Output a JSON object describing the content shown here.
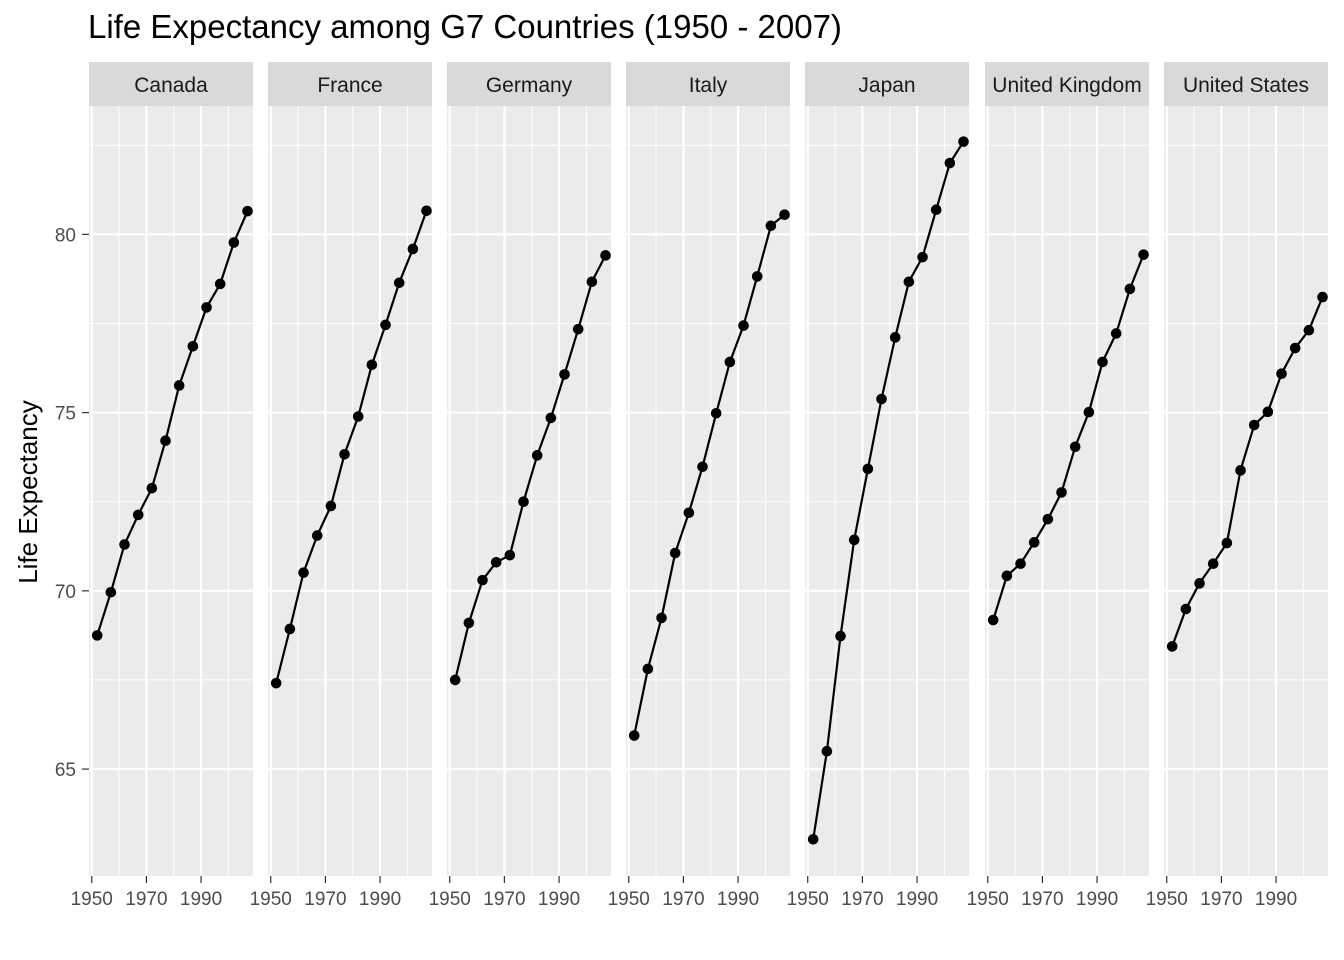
{
  "chart_data": {
    "type": "line",
    "title": "Life Expectancy among G7 Countries (1950 - 2007)",
    "xlabel": "",
    "ylabel": "Life Expectancy",
    "x": [
      1952,
      1957,
      1962,
      1967,
      1972,
      1977,
      1982,
      1987,
      1992,
      1997,
      2002,
      2007
    ],
    "xlim": [
      1949,
      2009
    ],
    "ylim": [
      62,
      83.6
    ],
    "x_ticks": [
      1950,
      1970,
      1990
    ],
    "x_tick_labels": [
      "1950",
      "1970",
      "1990"
    ],
    "y_ticks": [
      65,
      70,
      75,
      80
    ],
    "y_tick_labels": [
      "65",
      "70",
      "75",
      "80"
    ],
    "grid": true,
    "legend": "none",
    "facets": [
      {
        "name": "Canada",
        "values": [
          68.75,
          69.96,
          71.3,
          72.13,
          72.88,
          74.21,
          75.76,
          76.86,
          77.95,
          78.61,
          79.77,
          80.65
        ]
      },
      {
        "name": "France",
        "values": [
          67.41,
          68.93,
          70.51,
          71.55,
          72.38,
          73.83,
          74.89,
          76.34,
          77.46,
          78.64,
          79.59,
          80.66
        ]
      },
      {
        "name": "Germany",
        "values": [
          67.5,
          69.1,
          70.3,
          70.8,
          71.0,
          72.5,
          73.8,
          74.85,
          76.07,
          77.34,
          78.67,
          79.41
        ]
      },
      {
        "name": "Italy",
        "values": [
          65.94,
          67.81,
          69.24,
          71.06,
          72.19,
          73.48,
          74.98,
          76.42,
          77.44,
          78.82,
          80.24,
          80.55
        ]
      },
      {
        "name": "Japan",
        "values": [
          63.03,
          65.5,
          68.73,
          71.43,
          73.42,
          75.38,
          77.11,
          78.67,
          79.36,
          80.69,
          82.0,
          82.6
        ]
      },
      {
        "name": "United Kingdom",
        "values": [
          69.18,
          70.42,
          70.76,
          71.36,
          72.01,
          72.76,
          74.04,
          75.01,
          76.42,
          77.22,
          78.47,
          79.43
        ]
      },
      {
        "name": "United States",
        "values": [
          68.44,
          69.49,
          70.21,
          70.76,
          71.34,
          73.38,
          74.65,
          75.02,
          76.09,
          76.81,
          77.31,
          78.24
        ]
      }
    ]
  }
}
